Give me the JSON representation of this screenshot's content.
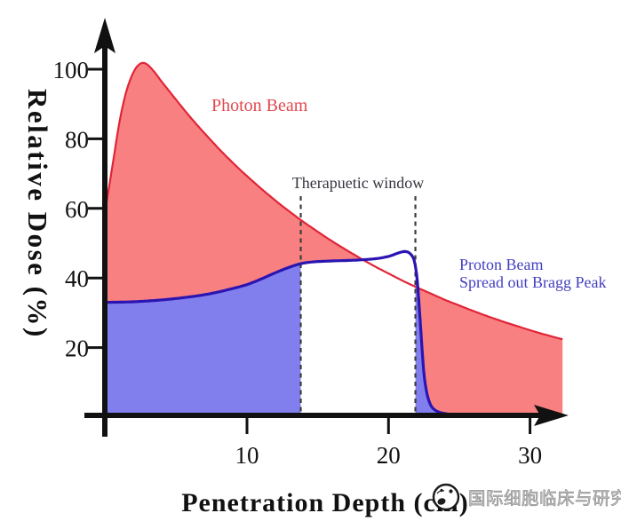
{
  "chart_data": {
    "type": "area",
    "title": "",
    "xlabel": "Penetration Depth (cm)",
    "ylabel": "Relative Dose (%)",
    "xlim": [
      0,
      32.5
    ],
    "ylim": [
      0,
      110
    ],
    "x_ticks": [
      10,
      20,
      30
    ],
    "y_ticks": [
      20,
      40,
      60,
      80,
      100
    ],
    "grid": false,
    "legend_position": "inline-annotations",
    "annotations": {
      "therapeutic_window": {
        "label": "Therapuetic window",
        "x_start_cm": 13.8,
        "x_end_cm": 21.9
      },
      "photon_label": "Photon Beam",
      "proton_label_line1": "Proton Beam",
      "proton_label_line2": "Spread out Bragg Peak"
    },
    "series": [
      {
        "name": "Photon Beam",
        "kind": "area",
        "line_color": "#E02537",
        "fill_color": "#F98080",
        "points_cm_pct": [
          [
            0,
            60
          ],
          [
            0.25,
            66
          ],
          [
            0.6,
            75
          ],
          [
            1.0,
            85
          ],
          [
            1.4,
            92.5
          ],
          [
            1.8,
            97.5
          ],
          [
            2.2,
            100.6
          ],
          [
            2.6,
            101.8
          ],
          [
            3.0,
            101.2
          ],
          [
            3.5,
            99
          ],
          [
            4.0,
            96.3
          ],
          [
            5,
            91.2
          ],
          [
            6,
            86.2
          ],
          [
            7,
            81.6
          ],
          [
            8,
            77.2
          ],
          [
            9,
            73.1
          ],
          [
            10,
            69.3
          ],
          [
            11,
            65.7
          ],
          [
            12,
            62.3
          ],
          [
            13,
            59.1
          ],
          [
            14,
            56.1
          ],
          [
            15,
            53.3
          ],
          [
            16,
            50.6
          ],
          [
            17,
            48.1
          ],
          [
            18,
            45.7
          ],
          [
            19,
            43.4
          ],
          [
            20,
            41.3
          ],
          [
            21,
            39.2
          ],
          [
            22,
            37.3
          ],
          [
            23,
            35.5
          ],
          [
            24,
            33.7
          ],
          [
            25,
            32.1
          ],
          [
            26,
            30.5
          ],
          [
            27,
            29.0
          ],
          [
            28,
            27.6
          ],
          [
            29,
            26.3
          ],
          [
            30,
            25.0
          ],
          [
            31,
            23.8
          ],
          [
            32,
            22.7
          ],
          [
            32.3,
            22.4
          ]
        ]
      },
      {
        "name": "Proton Beam (Spread out Bragg Peak)",
        "kind": "area",
        "line_color": "#2B15B2",
        "fill_color": "#817FEE",
        "fill_gap_cm": [
          13.8,
          21.9
        ],
        "fill_end_cm": 26.6,
        "points_cm_pct": [
          [
            0,
            33
          ],
          [
            1.5,
            33.1
          ],
          [
            3,
            33.4
          ],
          [
            4.5,
            33.9
          ],
          [
            6,
            34.6
          ],
          [
            7,
            35.2
          ],
          [
            8,
            36.0
          ],
          [
            9,
            37.0
          ],
          [
            10,
            38.1
          ],
          [
            11,
            39.7
          ],
          [
            12,
            41.5
          ],
          [
            13,
            43.1
          ],
          [
            13.8,
            44.1
          ],
          [
            14.6,
            44.6
          ],
          [
            16,
            44.9
          ],
          [
            17.5,
            45.1
          ],
          [
            19,
            45.5
          ],
          [
            20,
            46.2
          ],
          [
            20.7,
            47.2
          ],
          [
            21.15,
            47.6
          ],
          [
            21.5,
            47.1
          ],
          [
            21.8,
            45.2
          ],
          [
            22.0,
            40.5
          ],
          [
            22.15,
            33
          ],
          [
            22.35,
            21
          ],
          [
            22.55,
            11
          ],
          [
            22.85,
            4.8
          ],
          [
            23.3,
            2.0
          ],
          [
            24.2,
            0.9
          ],
          [
            25.5,
            0.5
          ],
          [
            26.6,
            0.4
          ]
        ]
      }
    ]
  },
  "watermark": {
    "logo": "circular-stamp-logo",
    "text": "国际细胞临床与研究",
    "color": "#a8a8a8"
  },
  "colors": {
    "background": "#ffffff",
    "axis": "#111111",
    "dashed_window_lines": "#3c3c3c",
    "photon_fill": "#F98080",
    "photon_line": "#E02537",
    "proton_fill": "#817FEE",
    "proton_line": "#2B15B2",
    "photon_label_text": "#E2484F",
    "proton_label_text": "#4340BF",
    "window_label_text": "#35353f"
  }
}
